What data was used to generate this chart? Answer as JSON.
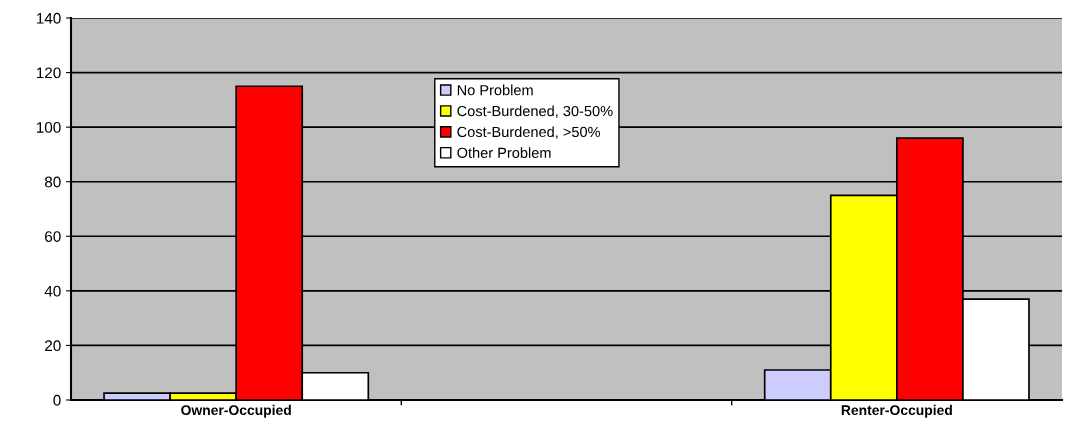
{
  "chart_data": {
    "type": "bar",
    "categories": [
      "Owner-Occupied",
      null,
      "Renter-Occupied"
    ],
    "series": [
      {
        "name": "No Problem",
        "color": "#ccccff",
        "values": [
          2.5,
          null,
          11
        ]
      },
      {
        "name": "Cost-Burdened, 30-50%",
        "color": "#ffff00",
        "values": [
          2.5,
          null,
          75
        ]
      },
      {
        "name": "Cost-Burdened, >50%",
        "color": "#ff0000",
        "values": [
          115,
          null,
          96
        ]
      },
      {
        "name": "Other Problem",
        "color": "#ffffff",
        "values": [
          10,
          null,
          37
        ]
      }
    ],
    "ylim": [
      0,
      140
    ],
    "yticks": [
      0,
      20,
      40,
      60,
      80,
      100,
      120,
      140
    ],
    "grid": "y",
    "legend": "top"
  }
}
